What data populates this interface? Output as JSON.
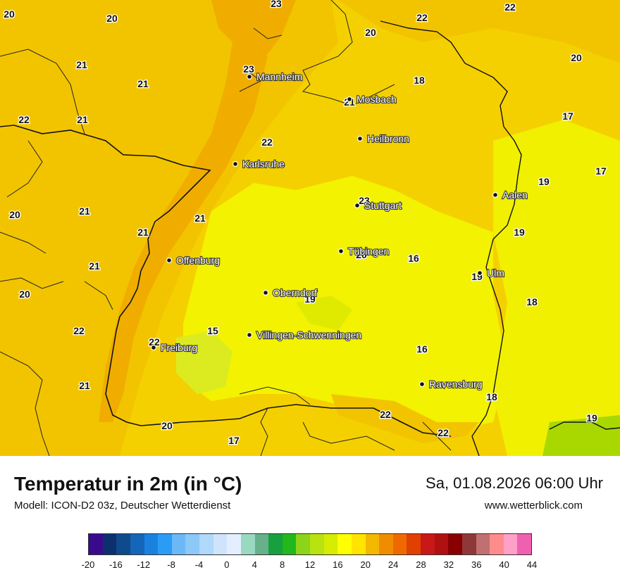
{
  "title": "Temperatur in 2m (in °C)",
  "model": "Modell: ICON-D2 03z, Deutscher Wetterdienst",
  "datetime": "Sa, 01.08.2026 06:00 Uhr",
  "website": "www.wetterblick.com",
  "cities": [
    {
      "name": "Mannheim"
    },
    {
      "name": "Mosbach"
    },
    {
      "name": "Heilbronn"
    },
    {
      "name": "Karlsruhe"
    },
    {
      "name": "Aalen"
    },
    {
      "name": "Stuttgart"
    },
    {
      "name": "Tübingen"
    },
    {
      "name": "Offenburg"
    },
    {
      "name": "Ulm"
    },
    {
      "name": "Oberndorf"
    },
    {
      "name": "Villingen-Schwenningen"
    },
    {
      "name": "Freiburg"
    },
    {
      "name": "Ravensburg"
    }
  ],
  "temperature_labels": [
    "23",
    "22",
    "22",
    "20",
    "20",
    "20",
    "21",
    "23",
    "18",
    "21",
    "21",
    "20",
    "17",
    "22",
    "17",
    "21",
    "19",
    "22",
    "21",
    "21",
    "23",
    "19",
    "20",
    "21",
    "16",
    "21",
    "20",
    "18",
    "19",
    "22",
    "15",
    "22",
    "16",
    "21",
    "18",
    "22",
    "19",
    "20",
    "17",
    "22",
    "20",
    "19"
  ],
  "legend": {
    "colors": [
      "#3a0a8c",
      "#0c2f6e",
      "#0f4a8c",
      "#1565b8",
      "#1a82de",
      "#2a9cf5",
      "#6cb8f7",
      "#8cc8f8",
      "#b0d8fa",
      "#cfe4fb",
      "#e3efff",
      "#99d9c0",
      "#66b08c",
      "#18a040",
      "#22b81c",
      "#8cd418",
      "#b8e210",
      "#d6ec00",
      "#ffff00",
      "#ffe400",
      "#f4b800",
      "#f08c00",
      "#ee6a00",
      "#e04000",
      "#c81818",
      "#b01010",
      "#880000",
      "#903838",
      "#c07070",
      "#ff8c8c",
      "#ffa0c8",
      "#f060b0"
    ],
    "ticks": [
      "-20",
      "-16",
      "-12",
      "-8",
      "-4",
      "0",
      "4",
      "8",
      "12",
      "16",
      "20",
      "24",
      "28",
      "32",
      "36",
      "40",
      "44"
    ]
  }
}
